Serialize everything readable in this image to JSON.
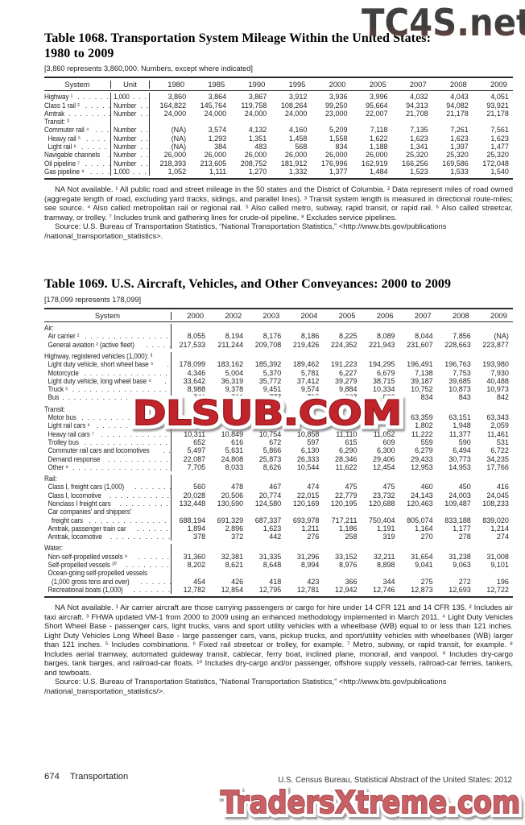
{
  "watermarks": {
    "top": "TC4S.net",
    "middle": "DLSUB.COM",
    "bottom": "TradersXtreme.com"
  },
  "table1068": {
    "title_line1": "Table 1068. Transportation System Mileage Within the United States:",
    "title_line2": "1980 to 2009",
    "bracket_note": "[3,860 represents 3,860,000. Numbers, except where indicated]",
    "col_headers": [
      "System",
      "Unit",
      "1980",
      "1985",
      "1990",
      "1995",
      "2000",
      "2005",
      "2007",
      "2008",
      "2009"
    ],
    "rows": [
      {
        "label": "Highway ¹",
        "unit": "1,000",
        "values": [
          "3,860",
          "3,864",
          "3,867",
          "3,912",
          "3,936",
          "3,996",
          "4,032",
          "4,043",
          "4,051"
        ]
      },
      {
        "label": "Class 1 rail ²",
        "unit": "Number",
        "values": [
          "164,822",
          "145,764",
          "119,758",
          "108,264",
          "99,250",
          "95,664",
          "94,313",
          "94,082",
          "93,921"
        ]
      },
      {
        "label": "Amtrak",
        "unit": "Number",
        "values": [
          "24,000",
          "24,000",
          "24,000",
          "24,000",
          "23,000",
          "22,007",
          "21,708",
          "21,178",
          "21,178"
        ]
      },
      {
        "label": "Transit: ³",
        "unit": "",
        "values": null
      },
      {
        "label": "Commuter rail ⁴",
        "unit": "Number",
        "values": [
          "(NA)",
          "3,574",
          "4,132",
          "4,160",
          "5,209",
          "7,118",
          "7,135",
          "7,261",
          "7,561"
        ]
      },
      {
        "label": "Heavy rail ⁵",
        "unit": "Number",
        "indent": 1,
        "values": [
          "(NA)",
          "1,293",
          "1,351",
          "1,458",
          "1,558",
          "1,622",
          "1,623",
          "1,623",
          "1,623"
        ]
      },
      {
        "label": "Light rail ⁶",
        "unit": "Number",
        "indent": 1,
        "values": [
          "(NA)",
          "384",
          "483",
          "568",
          "834",
          "1,188",
          "1,341",
          "1,397",
          "1,477"
        ]
      },
      {
        "label": "Navigable channels",
        "unit": "Number",
        "values": [
          "26,000",
          "26,000",
          "26,000",
          "26,000",
          "26,000",
          "26,000",
          "25,320",
          "25,320",
          "25,320"
        ]
      },
      {
        "label": "Oil pipeline ⁷",
        "unit": "Number",
        "values": [
          "218,393",
          "213,605",
          "208,752",
          "181,912",
          "176,996",
          "162,919",
          "166,256",
          "169,586",
          "172,048"
        ]
      },
      {
        "label": "Gas pipeline ⁸",
        "unit": "1,000",
        "values": [
          "1,052",
          "1,111",
          "1,270",
          "1,332",
          "1,377",
          "1,484",
          "1,523",
          "1,533",
          "1,540"
        ]
      }
    ],
    "footnote": "NA Not available. ¹ All public road and street mileage in the 50 states and the District of Columbia. ² Data represent miles of road owned (aggregate length of road, excluding yard tracks, sidings, and parallel lines). ³ Transit system length is measured in directional route-miles; see source. ⁴ Also called metropolitan rail or regional rail. ⁵ Also called metro, subway, rapid transit, or rapid rail. ⁶ Also called streetcar, tramway, or trolley. ⁷ Includes trunk and gathering lines for crude-oil pipeline. ⁸ Excludes service pipelines.",
    "source_line1": "Source: U.S. Bureau of Transportation Statistics, “National Transportation Statistics,” <http://www.bts.gov/publications",
    "source_line2": "/national_transportation_statistics>."
  },
  "table1069": {
    "title_line1": "Table 1069. U.S. Aircraft, Vehicles, and Other Conveyances: 2000 to 2009",
    "bracket_note": "[178,099 represents 178,099]",
    "col_headers": [
      "System",
      "2000",
      "2002",
      "2003",
      "2004",
      "2005",
      "2006",
      "2007",
      "2008",
      "2009"
    ],
    "rows": [
      {
        "label": "Air:",
        "section": true,
        "values": null
      },
      {
        "label": "Air carrier ¹",
        "indent": 1,
        "values": [
          "8,055",
          "8,194",
          "8,176",
          "8,186",
          "8,225",
          "8,089",
          "8,044",
          "7,856",
          "(NA)"
        ]
      },
      {
        "label": "General aviation ² (active fleet)",
        "indent": 1,
        "values": [
          "217,533",
          "211,244",
          "209,708",
          "219,426",
          "224,352",
          "221,943",
          "231,607",
          "228,663",
          "223,877"
        ]
      },
      {
        "label": "Highway, registered vehicles (1,000): ³",
        "section": true,
        "gap": true,
        "values": null
      },
      {
        "label": "Light duty vehicle, short wheel base ⁴",
        "indent": 1,
        "values": [
          "178,099",
          "183,162",
          "185,392",
          "189,462",
          "191,223",
          "194,295",
          "196,491",
          "196,763",
          "193,980"
        ]
      },
      {
        "label": "Motorcycle",
        "indent": 1,
        "values": [
          "4,346",
          "5,004",
          "5,370",
          "5,781",
          "6,227",
          "6,679",
          "7,138",
          "7,753",
          "7,930"
        ]
      },
      {
        "label": "Light duty vehicle, long wheel base ⁴",
        "indent": 1,
        "values": [
          "33,642",
          "36,319",
          "35,772",
          "37,412",
          "39,279",
          "38,715",
          "39,187",
          "39,685",
          "40,488"
        ]
      },
      {
        "label": "Truck ⁵",
        "indent": 1,
        "values": [
          "8,988",
          "9,378",
          "9,451",
          "9,574",
          "9,884",
          "10,334",
          "10,752",
          "10,873",
          "10,973"
        ]
      },
      {
        "label": "Bus",
        "indent": 1,
        "values": [
          "746",
          "761",
          "777",
          "795",
          "807",
          "822",
          "834",
          "843",
          "842"
        ]
      },
      {
        "label": "Transit:",
        "section": true,
        "gap": true,
        "values": null
      },
      {
        "label": "Motor bus",
        "indent": 1,
        "values": [
          "",
          "",
          "",
          "",
          "",
          "",
          "63,359",
          "63,151",
          "63,343"
        ]
      },
      {
        "label": "Light rail cars ⁶",
        "indent": 1,
        "values": [
          "",
          "",
          "",
          "",
          "",
          "",
          "1,802",
          "1,948",
          "2,059"
        ]
      },
      {
        "label": "Heavy rail cars ⁷",
        "indent": 1,
        "values": [
          "10,311",
          "10,849",
          "10,754",
          "10,858",
          "11,110",
          "11,052",
          "11,222",
          "11,377",
          "11,461"
        ]
      },
      {
        "label": "Trolley bus",
        "indent": 1,
        "values": [
          "652",
          "616",
          "672",
          "597",
          "615",
          "609",
          "559",
          "590",
          "531"
        ]
      },
      {
        "label": "Commuter rail cars and locomotives",
        "indent": 1,
        "values": [
          "5,497",
          "5,631",
          "5,866",
          "6,130",
          "6,290",
          "6,300",
          "6,279",
          "6,494",
          "6,722"
        ]
      },
      {
        "label": "Demand response",
        "indent": 1,
        "values": [
          "22,087",
          "24,808",
          "25,873",
          "26,333",
          "28,346",
          "29,406",
          "29,433",
          "30,773",
          "34,235"
        ]
      },
      {
        "label": "Other ⁸",
        "indent": 1,
        "values": [
          "7,705",
          "8,033",
          "8,626",
          "10,544",
          "11,622",
          "12,454",
          "12,953",
          "14,953",
          "17,766"
        ]
      },
      {
        "label": "Rail:",
        "section": true,
        "gap": true,
        "values": null
      },
      {
        "label": "Class I, freight cars (1,000)",
        "indent": 1,
        "values": [
          "560",
          "478",
          "467",
          "474",
          "475",
          "475",
          "460",
          "450",
          "416"
        ]
      },
      {
        "label": "Class I, locomotive",
        "indent": 1,
        "values": [
          "20,028",
          "20,506",
          "20,774",
          "22,015",
          "22,779",
          "23,732",
          "24,143",
          "24,003",
          "24,045"
        ]
      },
      {
        "label": "Nonclass I freight cars",
        "indent": 1,
        "values": [
          "132,448",
          "130,590",
          "124,580",
          "120,169",
          "120,195",
          "120,688",
          "120,463",
          "109,487",
          "108,233"
        ]
      },
      {
        "label": "Car companies' and shippers'",
        "indent": 1,
        "values": null
      },
      {
        "label": "freight cars",
        "indent": 2,
        "values": [
          "688,194",
          "691,329",
          "687,337",
          "693,978",
          "717,211",
          "750,404",
          "805,074",
          "833,188",
          "839,020"
        ]
      },
      {
        "label": "Amtrak, passenger train car",
        "indent": 1,
        "values": [
          "1,894",
          "2,896",
          "1,623",
          "1,211",
          "1,186",
          "1,191",
          "1,164",
          "1,177",
          "1,214"
        ]
      },
      {
        "label": "Amtrak, locomotive",
        "indent": 1,
        "values": [
          "378",
          "372",
          "442",
          "276",
          "258",
          "319",
          "270",
          "278",
          "274"
        ]
      },
      {
        "label": "Water:",
        "section": true,
        "gap": true,
        "values": null
      },
      {
        "label": "Non-self-propelled vessels ⁹",
        "indent": 1,
        "values": [
          "31,360",
          "32,381",
          "31,335",
          "31,296",
          "33,152",
          "32,211",
          "31,654",
          "31,238",
          "31,008"
        ]
      },
      {
        "label": "Self-propelled vessels ¹⁰",
        "indent": 1,
        "values": [
          "8,202",
          "8,621",
          "8,648",
          "8,994",
          "8,976",
          "8,898",
          "9,041",
          "9,063",
          "9,101"
        ]
      },
      {
        "label": "Ocean-going self-propelled vessels",
        "indent": 1,
        "values": null
      },
      {
        "label": "(1,000 gross tons and over)",
        "indent": 2,
        "values": [
          "454",
          "426",
          "418",
          "423",
          "366",
          "344",
          "275",
          "272",
          "196"
        ]
      },
      {
        "label": "Recreational boats (1,000)",
        "indent": 1,
        "values": [
          "12,782",
          "12,854",
          "12,795",
          "12,781",
          "12,942",
          "12,746",
          "12,873",
          "12,693",
          "12,722"
        ]
      }
    ],
    "footnote": "NA Not available. ¹ Air carrier aircraft are those carrying passengers or cargo for hire under 14 CFR 121 and 14 CFR 135. ² Includes air taxi aircraft. ³ FHWA updated VM-1 from 2000 to 2009 using an enhanced methodology implemented in March 2011. ⁴ Light Duty Vehicles Short Wheel Base - passenger cars, light trucks, vans and sport utility vehicles with a wheelbase (WB) equal to or less than 121 inches. Light Duty Vehicles Long Wheel Base - large passenger cars, vans, pickup trucks, and sport/utility vehicles with wheelbases (WB) larger than 121 inches. ⁵ Includes combinations. ⁶ Fixed rail streetcar or trolley, for example. ⁷ Metro, subway, or rapid transit, for example. ⁸ Includes aerial tramway, automated guideway transit, cablecar, ferry boat, inclined plane, monorail, and vanpool. ⁹ Includes dry-cargo barges, tank barges, and railroad-car floats. ¹⁰ Includes dry-cargo and/or passenger, offshore supply vessels, railroad-car ferries, tankers, and towboats.",
    "source_line1": "Source: U.S. Bureau of Transportation Statistics, “National Transportation Statistics,” <http://www.bts.gov/publications",
    "source_line2": "/national_transportation_statistics/>."
  },
  "footer": {
    "page_number": "674",
    "section_title": "Transportation",
    "credit": "U.S. Census Bureau, Statistical Abstract of the United States: 2012"
  },
  "colors": {
    "watermark_top_dark": "#3d3d3d",
    "watermark_top_maroon": "#79463e",
    "watermark_mid_red": "#c2242c",
    "watermark_bottom_red": "#c76165",
    "text": "#1f1f1f"
  }
}
